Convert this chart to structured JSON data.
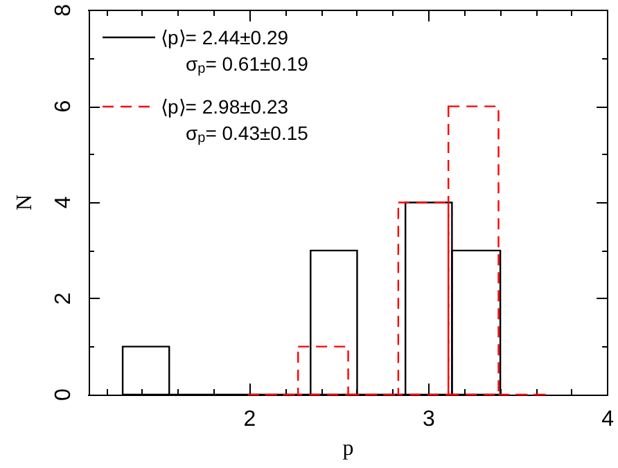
{
  "chart_data": {
    "type": "histogram",
    "xlabel": "p",
    "ylabel": "N",
    "bins": [
      1.29,
      1.55,
      1.81,
      2.08,
      2.34,
      2.6,
      2.87,
      3.13,
      3.4
    ],
    "series": [
      {
        "name": "⟨p⟩= 2.44±0.29",
        "color": "#000000",
        "line_style": "solid",
        "values": [
          1,
          0,
          0,
          0,
          3,
          0,
          4,
          3
        ]
      },
      {
        "name": "⟨p⟩= 2.98±0.23",
        "color": "#ff0000",
        "line_style": "dashed",
        "bins": [
          1.99,
          2.27,
          2.55,
          2.83,
          3.11,
          3.39,
          3.67
        ],
        "values": [
          0,
          1,
          0,
          4,
          6,
          0
        ]
      }
    ],
    "annotations": [
      "σ$_{p}$= 0.61±0.19",
      "σ$_{p}$= 0.43±0.15"
    ],
    "xlim": [
      1.1,
      4
    ],
    "xticks": [
      {
        "value": 1.2,
        "label": null
      },
      {
        "value": 1.4,
        "label": null
      },
      {
        "value": 1.6,
        "label": null
      },
      {
        "value": 1.8,
        "label": null
      },
      2,
      {
        "value": 2.2,
        "label": null
      },
      {
        "value": 2.4,
        "label": null
      },
      {
        "value": 2.6,
        "label": null
      },
      {
        "value": 2.8,
        "label": null
      },
      3,
      {
        "value": 3.2,
        "label": null
      },
      {
        "value": 3.4,
        "label": null
      },
      {
        "value": 3.6,
        "label": null
      },
      {
        "value": 3.8,
        "label": null
      },
      4
    ],
    "ylim": [
      0,
      8
    ],
    "yticks": [
      0,
      {
        "value": 1,
        "label": null
      },
      2,
      {
        "value": 3,
        "label": null
      },
      4,
      {
        "value": 5,
        "label": null
      },
      6,
      {
        "value": 7,
        "label": null
      },
      8
    ],
    "grid": false,
    "legend": "top left"
  }
}
